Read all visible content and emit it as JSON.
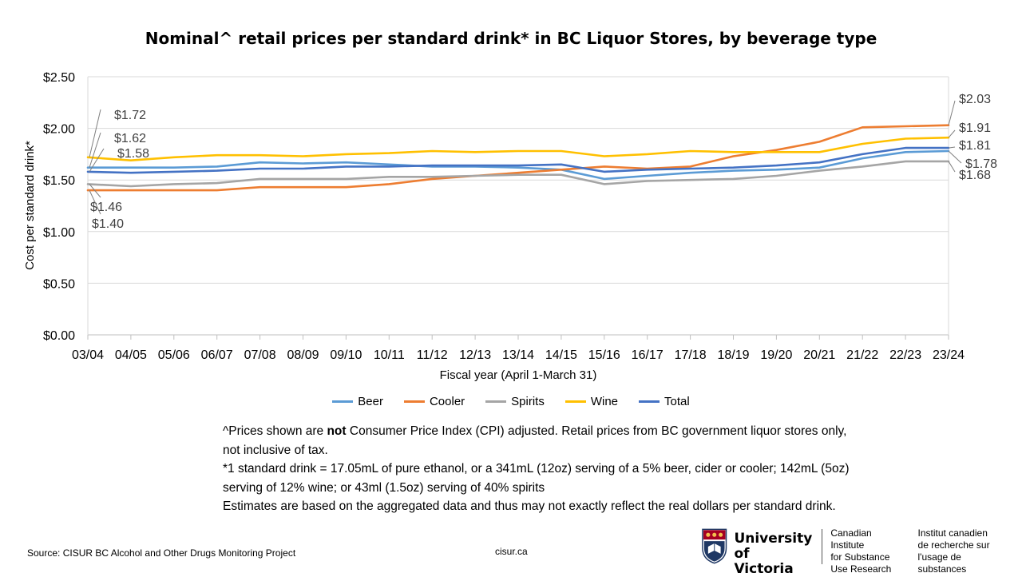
{
  "chart_data": {
    "type": "line",
    "title": "Nominal^ retail prices per standard drink* in BC Liquor Stores, by beverage type",
    "xlabel": "Fiscal year (April 1-March 31)",
    "ylabel": "Cost per standard drink*",
    "ylim": [
      0,
      2.5
    ],
    "yticks": [
      "$0.00",
      "$0.50",
      "$1.00",
      "$1.50",
      "$2.00",
      "$2.50"
    ],
    "ytick_values": [
      0,
      0.5,
      1.0,
      1.5,
      2.0,
      2.5
    ],
    "categories": [
      "03/04",
      "04/05",
      "05/06",
      "06/07",
      "07/08",
      "08/09",
      "09/10",
      "10/11",
      "11/12",
      "12/13",
      "13/14",
      "14/15",
      "15/16",
      "16/17",
      "17/18",
      "18/19",
      "19/20",
      "20/21",
      "21/22",
      "22/23",
      "23/24"
    ],
    "grid": true,
    "legend_position": "bottom",
    "series": [
      {
        "name": "Beer",
        "color": "#5B9BD5",
        "values": [
          1.62,
          1.62,
          1.62,
          1.63,
          1.67,
          1.66,
          1.67,
          1.65,
          1.63,
          1.63,
          1.62,
          1.6,
          1.51,
          1.54,
          1.57,
          1.59,
          1.6,
          1.62,
          1.71,
          1.77,
          1.78
        ]
      },
      {
        "name": "Cooler",
        "color": "#ED7D31",
        "values": [
          1.4,
          1.4,
          1.4,
          1.4,
          1.43,
          1.43,
          1.43,
          1.46,
          1.51,
          1.54,
          1.57,
          1.6,
          1.63,
          1.61,
          1.63,
          1.73,
          1.79,
          1.87,
          2.01,
          2.02,
          2.03
        ]
      },
      {
        "name": "Spirits",
        "color": "#A5A5A5",
        "values": [
          1.46,
          1.44,
          1.46,
          1.47,
          1.51,
          1.51,
          1.51,
          1.53,
          1.53,
          1.54,
          1.55,
          1.55,
          1.46,
          1.49,
          1.5,
          1.51,
          1.54,
          1.59,
          1.63,
          1.68,
          1.68
        ]
      },
      {
        "name": "Wine",
        "color": "#FFC000",
        "values": [
          1.72,
          1.69,
          1.72,
          1.74,
          1.74,
          1.73,
          1.75,
          1.76,
          1.78,
          1.77,
          1.78,
          1.78,
          1.73,
          1.75,
          1.78,
          1.77,
          1.77,
          1.77,
          1.85,
          1.9,
          1.91
        ]
      },
      {
        "name": "Total",
        "color": "#4472C4",
        "values": [
          1.58,
          1.57,
          1.58,
          1.59,
          1.61,
          1.61,
          1.63,
          1.63,
          1.64,
          1.64,
          1.64,
          1.65,
          1.58,
          1.6,
          1.61,
          1.62,
          1.64,
          1.67,
          1.75,
          1.81,
          1.81
        ]
      }
    ],
    "start_labels": [
      {
        "series": "Wine",
        "text": "$1.72"
      },
      {
        "series": "Beer",
        "text": "$1.62"
      },
      {
        "series": "Total",
        "text": "$1.58"
      },
      {
        "series": "Spirits",
        "text": "$1.46"
      },
      {
        "series": "Cooler",
        "text": "$1.40"
      }
    ],
    "end_labels": [
      {
        "series": "Cooler",
        "text": "$2.03"
      },
      {
        "series": "Wine",
        "text": "$1.91"
      },
      {
        "series": "Total",
        "text": "$1.81"
      },
      {
        "series": "Beer",
        "text": "$1.78"
      },
      {
        "series": "Spirits",
        "text": "$1.68"
      }
    ]
  },
  "notes": {
    "line1_pre": "^Prices shown are ",
    "line1_bold": "not",
    "line1_post": " Consumer Price Index (CPI) adjusted. Retail prices from BC government liquor stores only, not inclusive of tax.",
    "line2": "*1 standard drink = 17.05mL of pure ethanol, or a 341mL (12oz) serving of a 5% beer, cider or cooler; 142mL (5oz) serving of 12% wine; or 43ml (1.5oz) serving of 40% spirits",
    "line3": "Estimates are based on the aggregated data and thus may not exactly reflect the real dollars per standard drink."
  },
  "footer": {
    "source": "Source: CISUR BC Alcohol and Other Drugs Monitoring Project",
    "site": "cisur.ca",
    "uvic_line1": "University",
    "uvic_line2": "of Victoria",
    "cisur_en_1": "Canadian Institute",
    "cisur_en_2": "for Substance",
    "cisur_en_3": "Use Research",
    "cisur_fr_1": "Institut canadien",
    "cisur_fr_2": "de recherche sur",
    "cisur_fr_3": "l'usage de substances"
  },
  "colors": {
    "grid": "#D9D9D9",
    "axis": "#BFBFBF",
    "callout": "#7F7F7F"
  }
}
